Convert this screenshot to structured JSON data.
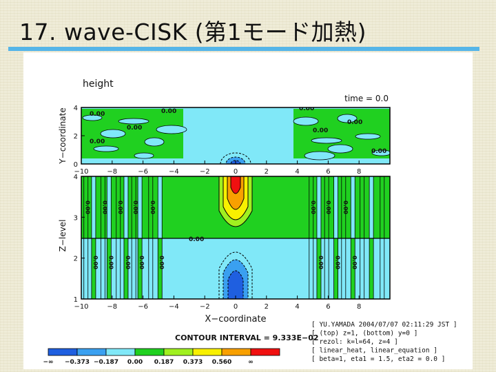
{
  "slide": {
    "title": "17. wave-CISK (第1モード加熱)",
    "accent_color": "#55b5e8"
  },
  "figure": {
    "top_panel": {
      "title": "height",
      "time_label": "time = 0.0",
      "ylabel": "Y−coordinate",
      "yticks": [
        "0",
        "2",
        "4"
      ],
      "contour_labels": [
        "0.00",
        "0.00",
        "0.00",
        "0.00",
        "0.00",
        "0.00",
        "0.00",
        "0.00"
      ]
    },
    "bottom_panel": {
      "ylabel": "Z−level",
      "yticks": [
        "1",
        "2",
        "3",
        "4"
      ],
      "zero_label": "0.00",
      "contour_labels": [
        "0.00",
        "0.00",
        "0.00",
        "0.00",
        "0.00",
        "0.00",
        "0.00",
        "0.00",
        "0.00",
        "0.00",
        "0.00",
        "0.00",
        "0.00",
        "0.00",
        "0.00",
        "0.00"
      ]
    },
    "xlabel": "X−coordinate",
    "xticks": [
      "−10",
      "−8",
      "−6",
      "−4",
      "−2",
      "0",
      "2",
      "4",
      "6",
      "8"
    ],
    "contour_interval": "CONTOUR INTERVAL = 9.333E−02",
    "info_lines": [
      "[ YU.YAMADA 2004/07/07 02:11:29 JST ]",
      "[ (top) z=1, (bottom) y=0 ]",
      "[ rezol: k=l=64, z=4 ]",
      "[ linear_heat, linear_equation ]",
      "[ beta=1, eta1 = 1.5, eta2 = 0.0 ]"
    ],
    "colorbar": {
      "labels": [
        "−∞",
        "−0.373",
        "−0.187",
        "0.00",
        "0.187",
        "0.373",
        "0.560",
        "∞"
      ],
      "colors": [
        "#1f5fe0",
        "#3aa0f0",
        "#80e8f8",
        "#20d020",
        "#a0f020",
        "#f8f000",
        "#f8a000",
        "#f01010"
      ]
    }
  }
}
